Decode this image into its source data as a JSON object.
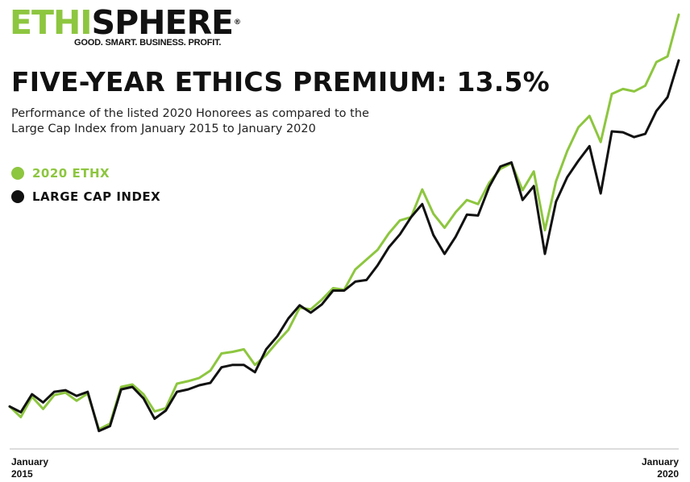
{
  "brand": {
    "name_part1": "ETHI",
    "name_part2": "SPHERE",
    "registered": "®",
    "tagline": "GOOD. SMART. BUSINESS. PROFIT.",
    "accent_color": "#8dc63f"
  },
  "chart_data": {
    "type": "line",
    "title": "FIVE-YEAR ETHICS PREMIUM: 13.5%",
    "subtitle_lines": [
      "Performance of the listed 2020 Honorees as compared to the",
      "Large Cap Index from January 2015 to January 2020"
    ],
    "x_tick_labels": [
      {
        "line1": "January",
        "line2": "2015"
      },
      {
        "line1": "January",
        "line2": "2020"
      }
    ],
    "x": [
      0,
      1,
      2,
      3,
      4,
      5,
      6,
      7,
      8,
      9,
      10,
      11,
      12,
      13,
      14,
      15,
      16,
      17,
      18,
      19,
      20,
      21,
      22,
      23,
      24,
      25,
      26,
      27,
      28,
      29,
      30,
      31,
      32,
      33,
      34,
      35,
      36,
      37,
      38,
      39,
      40,
      41,
      42,
      43,
      44,
      45,
      46,
      47,
      48,
      49,
      50,
      51,
      52,
      53,
      54,
      55,
      56,
      57,
      58,
      59,
      60
    ],
    "ylim": [
      0,
      550
    ],
    "grid": false,
    "legend_position": "top-left",
    "series": [
      {
        "name": "2020 ETHX",
        "color": "#8dc63f",
        "values": [
          52,
          39,
          64,
          49,
          66,
          69,
          59,
          68,
          24,
          31,
          76,
          79,
          67,
          46,
          50,
          80,
          83,
          87,
          96,
          117,
          119,
          122,
          103,
          115,
          131,
          146,
          173,
          171,
          183,
          197,
          195,
          220,
          232,
          244,
          264,
          280,
          284,
          318,
          288,
          271,
          290,
          305,
          300,
          326,
          343,
          350,
          317,
          340,
          268,
          328,
          365,
          394,
          408,
          376,
          435,
          441,
          438,
          445,
          474,
          481,
          532
        ]
      },
      {
        "name": "LARGE CAP INDEX",
        "color": "#111111",
        "values": [
          52,
          45,
          67,
          57,
          70,
          72,
          65,
          70,
          22,
          28,
          73,
          76,
          62,
          37,
          47,
          70,
          73,
          78,
          81,
          100,
          103,
          103,
          94,
          122,
          138,
          160,
          176,
          167,
          177,
          194,
          194,
          205,
          207,
          225,
          247,
          263,
          284,
          300,
          262,
          239,
          260,
          287,
          286,
          321,
          346,
          351,
          305,
          322,
          239,
          303,
          333,
          353,
          371,
          313,
          389,
          388,
          382,
          386,
          414,
          431,
          476
        ]
      }
    ]
  }
}
